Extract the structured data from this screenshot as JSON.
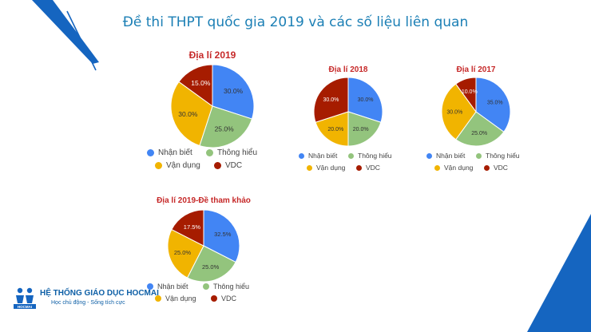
{
  "page": {
    "title": "Đề thi THPT quốc gia 2019 và các số liệu liên quan"
  },
  "brand": {
    "name": "HỆ THỐNG GIÁO DỤC HOCMAI",
    "tagline": "Học chủ động - Sống tích cực",
    "logo_text": "HOCMAI",
    "accent_color": "#1565c0"
  },
  "colors": {
    "nhan_biet": "#4285f4",
    "thong_hieu": "#93c47d",
    "van_dung": "#f1b400",
    "vdc": "#a61c00"
  },
  "chart_data": [
    {
      "type": "pie",
      "title": "Địa lí 2019",
      "slices": [
        {
          "label": "Nhận biết",
          "value": 30.0,
          "display": "30.0%",
          "color": "#4285f4"
        },
        {
          "label": "Thông hiểu",
          "value": 25.0,
          "display": "25.0%",
          "color": "#93c47d"
        },
        {
          "label": "Vận dụng",
          "value": 30.0,
          "display": "30.0%",
          "color": "#f1b400"
        },
        {
          "label": "VDC",
          "value": 15.0,
          "display": "15.0%",
          "color": "#a61c00"
        }
      ],
      "legend": [
        "Nhận biết",
        "Thông hiểu",
        "Vận dụng",
        "VDC"
      ],
      "legend_position": "bottom"
    },
    {
      "type": "pie",
      "title": "Địa lí 2018",
      "slices": [
        {
          "label": "Nhận biết",
          "value": 30.0,
          "display": "30.0%",
          "color": "#4285f4"
        },
        {
          "label": "Thông hiểu",
          "value": 20.0,
          "display": "20.0%",
          "color": "#93c47d"
        },
        {
          "label": "Vận dụng",
          "value": 20.0,
          "display": "20.0%",
          "color": "#f1b400"
        },
        {
          "label": "VDC",
          "value": 30.0,
          "display": "30.0%",
          "color": "#a61c00"
        }
      ],
      "legend": [
        "Nhận biết",
        "Thông hiểu",
        "Vận dụng",
        "VDC"
      ],
      "legend_position": "bottom"
    },
    {
      "type": "pie",
      "title": "Địa lí 2017",
      "slices": [
        {
          "label": "Nhận biết",
          "value": 35.0,
          "display": "35.0%",
          "color": "#4285f4"
        },
        {
          "label": "Thông hiểu",
          "value": 25.0,
          "display": "25.0%",
          "color": "#93c47d"
        },
        {
          "label": "Vận dụng",
          "value": 30.0,
          "display": "30.0%",
          "color": "#f1b400"
        },
        {
          "label": "VDC",
          "value": 10.0,
          "display": "10.0%",
          "color": "#a61c00"
        }
      ],
      "legend": [
        "Nhận biết",
        "Thông hiểu",
        "Vận dụng",
        "VDC"
      ],
      "legend_position": "bottom"
    },
    {
      "type": "pie",
      "title": "Địa lí 2019-Đề tham khảo",
      "slices": [
        {
          "label": "Nhận biết",
          "value": 32.5,
          "display": "32.5%",
          "color": "#4285f4"
        },
        {
          "label": "Thông hiểu",
          "value": 25.0,
          "display": "25.0%",
          "color": "#93c47d"
        },
        {
          "label": "Vận dụng",
          "value": 25.0,
          "display": "25.0%",
          "color": "#f1b400"
        },
        {
          "label": "VDC",
          "value": 17.5,
          "display": "17.5%",
          "color": "#a61c00"
        }
      ],
      "legend": [
        "Nhận biết",
        "Thông hiểu",
        "Vận dụng",
        "VDC"
      ],
      "legend_position": "bottom"
    }
  ]
}
